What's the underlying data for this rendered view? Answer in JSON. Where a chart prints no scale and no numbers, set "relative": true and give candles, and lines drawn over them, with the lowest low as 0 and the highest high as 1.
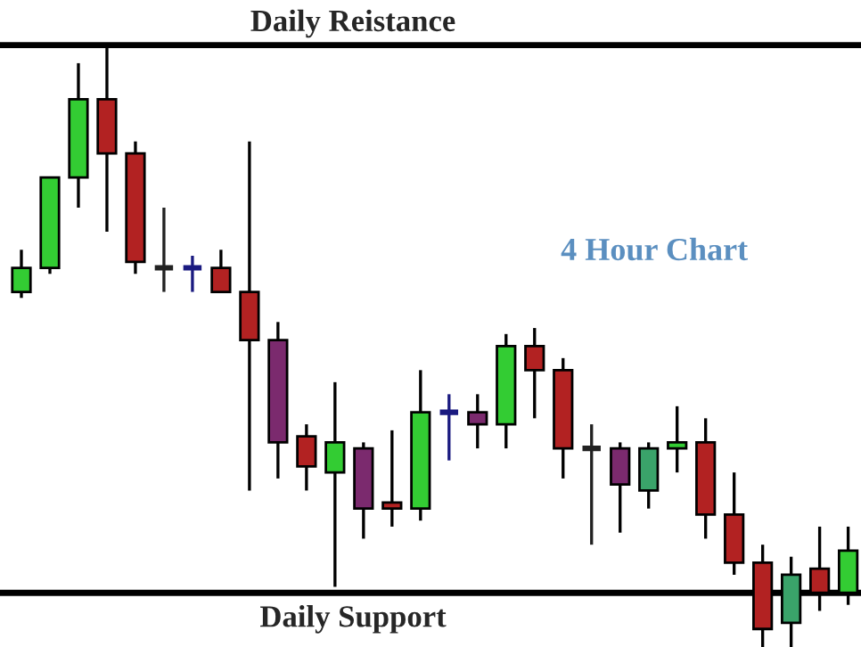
{
  "chart_data": {
    "type": "candlestick",
    "relative": true,
    "categories": [
      null,
      null,
      null,
      null,
      null,
      null,
      null,
      null,
      null,
      null,
      null,
      null,
      null,
      null,
      null,
      null,
      null,
      null,
      null,
      null,
      null,
      null,
      null,
      null,
      null,
      null,
      null,
      null,
      null,
      null
    ],
    "ohlc": [
      [
        0.59,
        0.66,
        0.58,
        0.63
      ],
      [
        0.63,
        0.78,
        0.62,
        0.78
      ],
      [
        0.78,
        0.97,
        0.73,
        0.91
      ],
      [
        0.91,
        1.0,
        0.69,
        0.82
      ],
      [
        0.82,
        0.84,
        0.62,
        0.64
      ],
      [
        0.63,
        0.73,
        0.59,
        0.63
      ],
      [
        0.63,
        0.65,
        0.59,
        0.63
      ],
      [
        0.63,
        0.66,
        0.59,
        0.59
      ],
      [
        0.59,
        0.84,
        0.26,
        0.51
      ],
      [
        0.51,
        0.54,
        0.28,
        0.34
      ],
      [
        0.35,
        0.37,
        0.26,
        0.3
      ],
      [
        0.29,
        0.44,
        0.1,
        0.34
      ],
      [
        0.33,
        0.34,
        0.18,
        0.23
      ],
      [
        0.24,
        0.36,
        0.2,
        0.23
      ],
      [
        0.23,
        0.46,
        0.21,
        0.39
      ],
      [
        0.39,
        0.42,
        0.31,
        0.39
      ],
      [
        0.39,
        0.42,
        0.33,
        0.37
      ],
      [
        0.37,
        0.52,
        0.33,
        0.5
      ],
      [
        0.5,
        0.53,
        0.38,
        0.46
      ],
      [
        0.46,
        0.48,
        0.28,
        0.33
      ],
      [
        0.33,
        0.37,
        0.17,
        0.33
      ],
      [
        0.33,
        0.34,
        0.19,
        0.27
      ],
      [
        0.26,
        0.34,
        0.23,
        0.33
      ],
      [
        0.33,
        0.4,
        0.29,
        0.34
      ],
      [
        0.34,
        0.38,
        0.18,
        0.22
      ],
      [
        0.22,
        0.29,
        0.12,
        0.14
      ],
      [
        0.14,
        0.17,
        0.0,
        0.03
      ],
      [
        0.04,
        0.15,
        0.0,
        0.12
      ],
      [
        0.13,
        0.2,
        0.06,
        0.09
      ],
      [
        0.09,
        0.2,
        0.07,
        0.16
      ]
    ],
    "colors": [
      "#33cc33",
      "#33cc33",
      "#33cc33",
      "#b22222",
      "#b22222",
      "#222222",
      "#1a1a80",
      "#b22222",
      "#b22222",
      "#7b2a6e",
      "#b22222",
      "#33cc33",
      "#7b2a6e",
      "#b22222",
      "#33cc33",
      "#1a1a80",
      "#7b2a6e",
      "#33cc33",
      "#b22222",
      "#b22222",
      "#222222",
      "#7b2a6e",
      "#3aa36a",
      "#33cc33",
      "#b22222",
      "#b22222",
      "#b22222",
      "#3aa36a",
      "#b22222",
      "#33cc33"
    ],
    "ref_lines": [
      {
        "axis": "y",
        "value": 1.0,
        "label": "Daily Reistance"
      },
      {
        "axis": "y",
        "value": 0.09,
        "label": "Daily Support"
      }
    ],
    "annotations": [
      "4 Hour Chart"
    ]
  }
}
